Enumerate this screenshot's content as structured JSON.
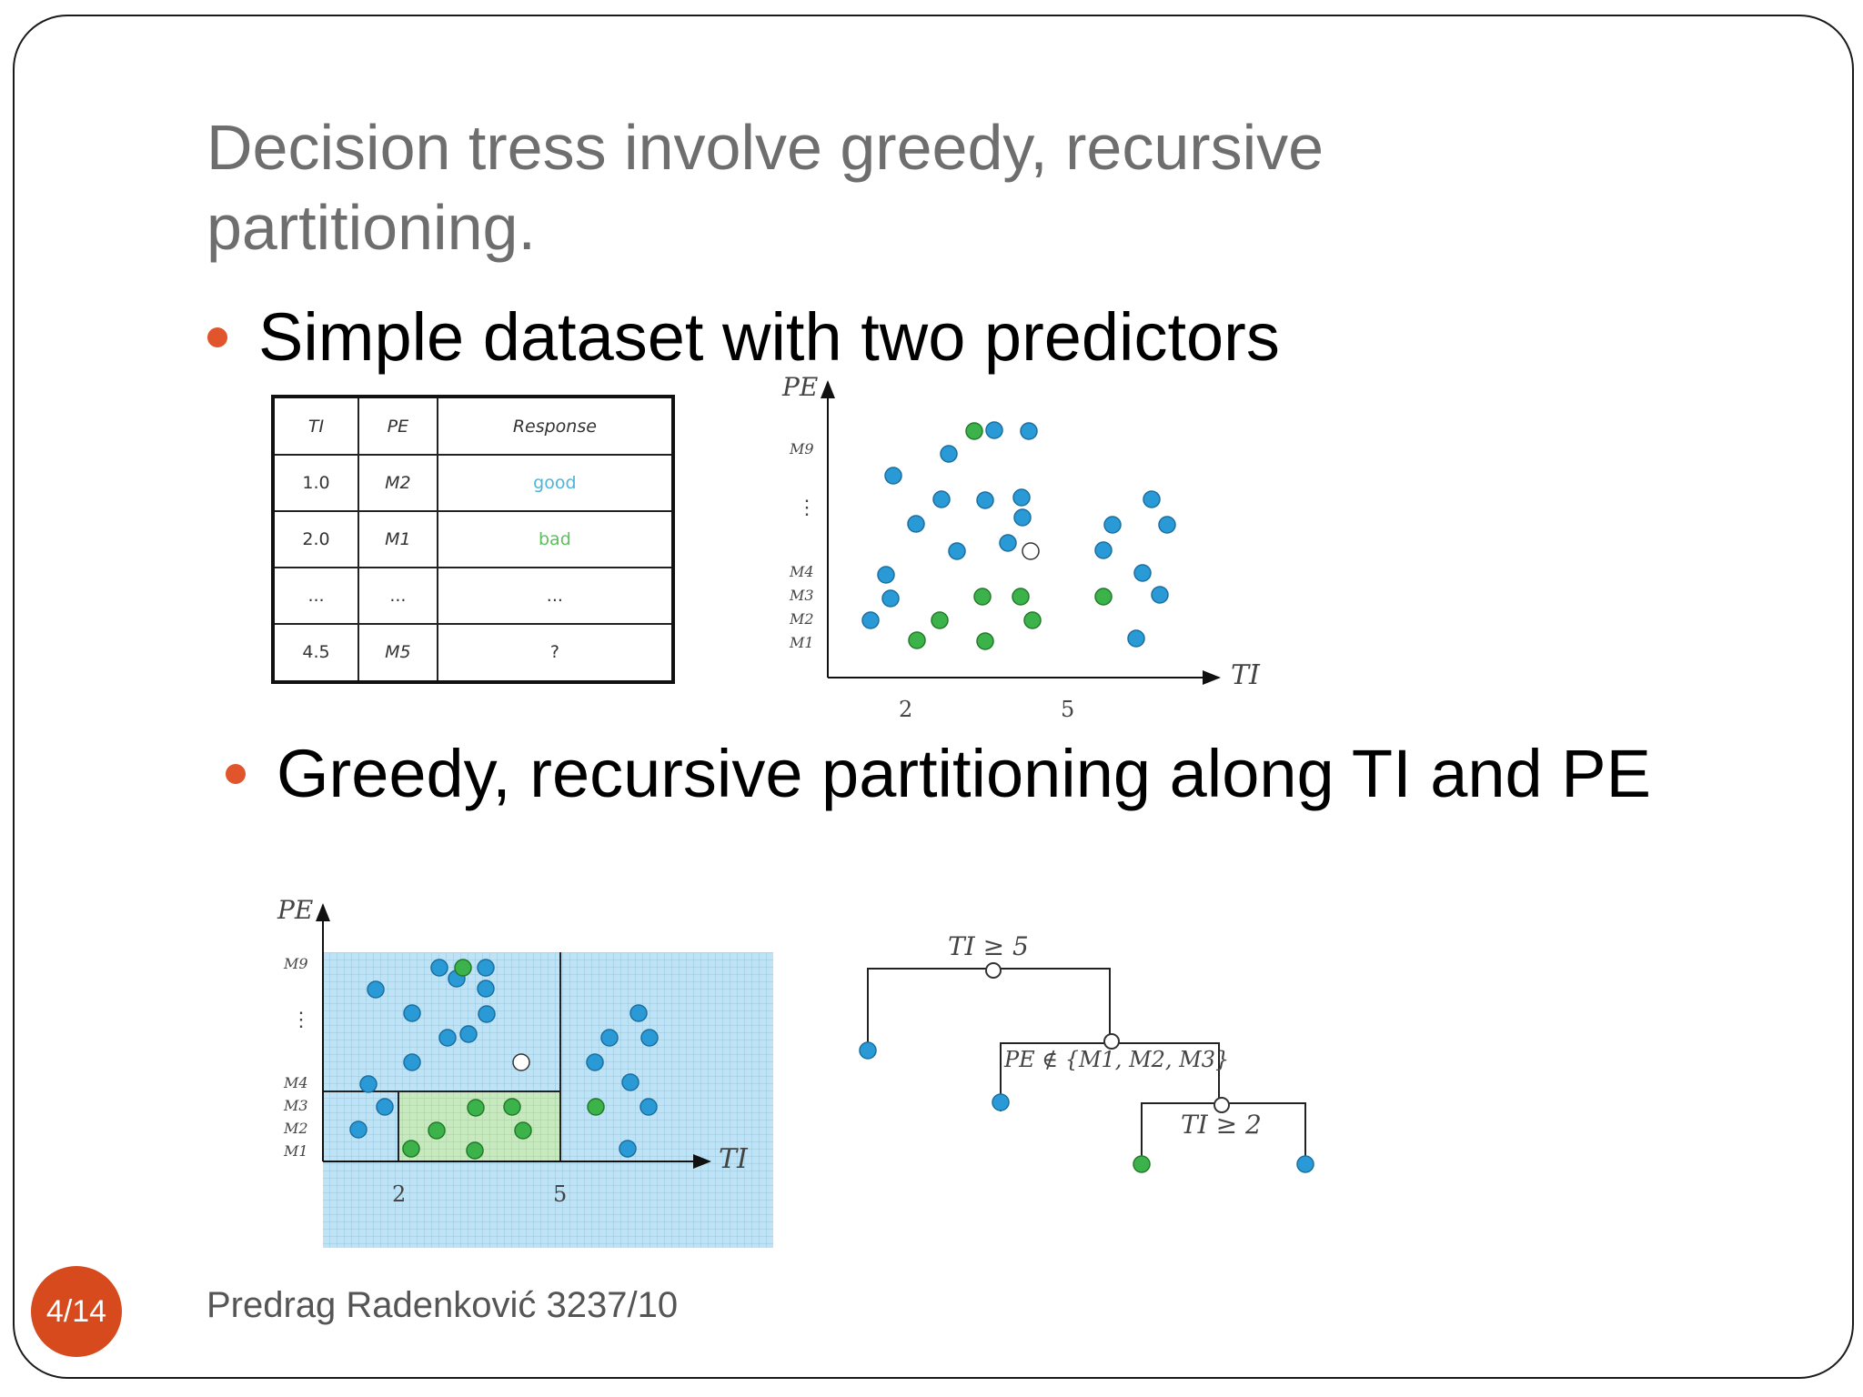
{
  "slide": {
    "title": "Decision tress involve greedy, recursive partitioning.",
    "bullet1": "Simple dataset with two predictors",
    "bullet2": "Greedy, recursive partitioning along TI and PE",
    "footer": "Predrag Radenković 3237/10",
    "page": "4/14"
  },
  "table": {
    "headers": [
      "TI",
      "PE",
      "Response"
    ],
    "rows": [
      [
        "1.0",
        "M2",
        "good"
      ],
      [
        "2.0",
        "M1",
        "bad"
      ],
      [
        "...",
        "...",
        "..."
      ],
      [
        "4.5",
        "M5",
        "?"
      ]
    ]
  },
  "scatter": {
    "y_axis_label": "PE",
    "x_axis_label": "TI",
    "y_ticks": [
      "M9",
      "⋮",
      "M4",
      "M3",
      "M2",
      "M1"
    ],
    "x_ticks": [
      "2",
      "5"
    ]
  },
  "tree": {
    "root": "TI ≥ 5",
    "node2": "PE ∉ {M1, M2, M3}",
    "node3": "TI ≥ 2"
  },
  "colors": {
    "blue": "#2a9ad6",
    "green": "#3cb34a",
    "accent": "#e0552b"
  }
}
